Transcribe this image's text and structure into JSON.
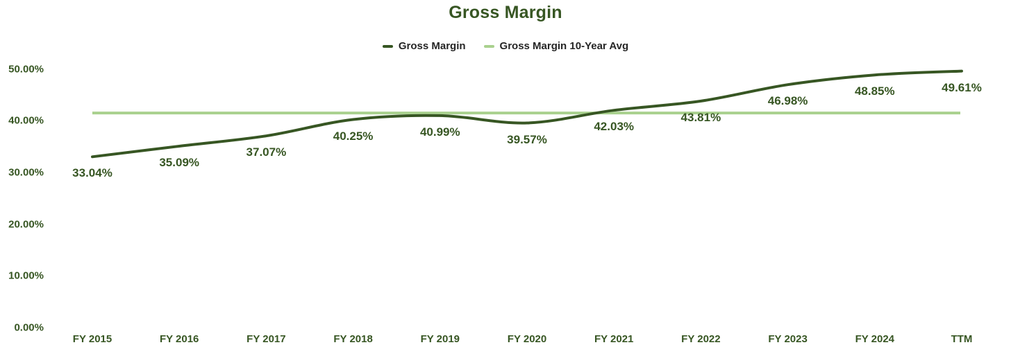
{
  "title": "Gross Margin",
  "legend": {
    "items": [
      {
        "label": "Gross Margin",
        "color": "#375623"
      },
      {
        "label": "Gross Margin 10-Year Avg",
        "color": "#a9d18e"
      }
    ]
  },
  "colors": {
    "title_text": "#375623",
    "axis_text": "#375623",
    "data_label_text": "#375623",
    "legend_text": "#262626",
    "line": "#375623",
    "avg_line": "#a9d18e",
    "background": "#ffffff"
  },
  "chart_data": {
    "type": "line",
    "title": "Gross Margin",
    "categories": [
      "FY 2015",
      "FY 2016",
      "FY 2017",
      "FY 2018",
      "FY 2019",
      "FY 2020",
      "FY 2021",
      "FY 2022",
      "FY 2023",
      "FY 2024",
      "TTM"
    ],
    "series": [
      {
        "name": "Gross Margin",
        "type": "smooth-line",
        "color": "#375623",
        "values": [
          33.04,
          35.09,
          37.07,
          40.25,
          40.99,
          39.57,
          42.03,
          43.81,
          46.98,
          48.85,
          49.61
        ],
        "data_labels": [
          "33.04%",
          "35.09%",
          "37.07%",
          "40.25%",
          "40.99%",
          "39.57%",
          "42.03%",
          "43.81%",
          "46.98%",
          "48.85%",
          "49.61%"
        ]
      },
      {
        "name": "Gross Margin 10-Year Avg",
        "type": "horizontal-reference-line",
        "color": "#a9d18e",
        "value": 41.5
      }
    ],
    "y_axis": {
      "ticks": [
        {
          "label": "0.00%",
          "value": 0
        },
        {
          "label": "10.00%",
          "value": 10
        },
        {
          "label": "20.00%",
          "value": 20
        },
        {
          "label": "30.00%",
          "value": 30
        },
        {
          "label": "40.00%",
          "value": 40
        },
        {
          "label": "50.00%",
          "value": 50
        }
      ],
      "range": [
        0,
        50
      ]
    },
    "legend_position": "top",
    "grid": false,
    "data_labels_shown": true
  }
}
